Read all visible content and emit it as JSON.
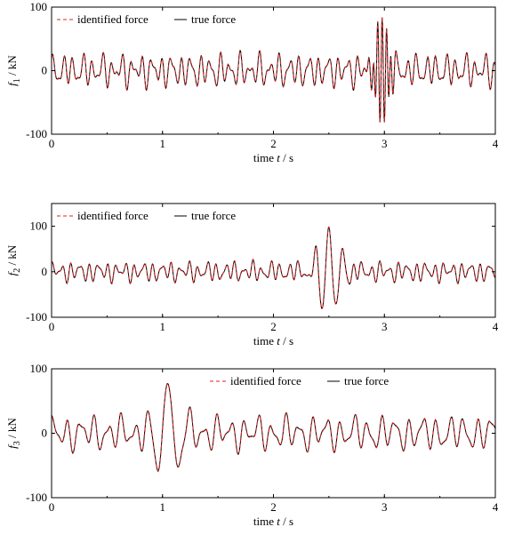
{
  "chart_data": [
    {
      "type": "line",
      "xlabel_parts": [
        "time ",
        "t",
        " / s"
      ],
      "ylabel_parts": [
        "f",
        "1",
        " / kN"
      ],
      "xlim": [
        0,
        4
      ],
      "ylim": [
        -100,
        100
      ],
      "xticks": [
        0,
        1,
        2,
        3,
        4
      ],
      "yticks": [
        -100,
        0,
        100
      ],
      "legend_position": "top-left",
      "series": [
        {
          "name": "identified force",
          "color": "#e02020",
          "style": "dashed"
        },
        {
          "name": "true force",
          "color": "#000000",
          "style": "solid"
        }
      ],
      "signal": {
        "samples": 1200,
        "base": [
          {
            "freq": 11.3,
            "amp": 16,
            "phase": 0.3
          },
          {
            "freq": 17.1,
            "amp": 10,
            "phase": 1.1
          },
          {
            "freq": 6.4,
            "amp": 6,
            "phase": 2.0
          }
        ],
        "burst": {
          "center": 2.98,
          "width": 0.08,
          "freq": 25,
          "amp": 85
        }
      }
    },
    {
      "type": "line",
      "xlabel_parts": [
        "time ",
        "t",
        " / s"
      ],
      "ylabel_parts": [
        "f",
        "2",
        " / kN"
      ],
      "xlim": [
        0,
        4
      ],
      "ylim": [
        -100,
        150
      ],
      "xticks": [
        0,
        1,
        2,
        3,
        4
      ],
      "yticks": [
        -100,
        0,
        100
      ],
      "legend_position": "top-left",
      "series": [
        {
          "name": "identified force",
          "color": "#e02020",
          "style": "dashed"
        },
        {
          "name": "true force",
          "color": "#000000",
          "style": "solid"
        }
      ],
      "signal": {
        "samples": 1200,
        "base": [
          {
            "freq": 12.2,
            "amp": 14,
            "phase": 0.7
          },
          {
            "freq": 17.6,
            "amp": 8,
            "phase": 1.6
          },
          {
            "freq": 5.1,
            "amp": 5,
            "phase": 0.2
          }
        ],
        "burst": {
          "center": 2.5,
          "width": 0.13,
          "freq": 7.9,
          "amp": 100
        }
      }
    },
    {
      "type": "line",
      "xlabel_parts": [
        "time ",
        "t",
        " / s"
      ],
      "ylabel_parts": [
        "f",
        "3",
        " / kN"
      ],
      "xlim": [
        0,
        4
      ],
      "ylim": [
        -100,
        100
      ],
      "xticks": [
        0,
        1,
        2,
        3,
        4
      ],
      "yticks": [
        -100,
        0,
        100
      ],
      "legend_position": "top-right",
      "series": [
        {
          "name": "identified force",
          "color": "#e02020",
          "style": "dashed"
        },
        {
          "name": "true force",
          "color": "#000000",
          "style": "solid"
        }
      ],
      "signal": {
        "samples": 1200,
        "base": [
          {
            "freq": 8.1,
            "amp": 18,
            "phase": 0.9
          },
          {
            "freq": 12.7,
            "amp": 9,
            "phase": 2.3
          },
          {
            "freq": 3.3,
            "amp": 6,
            "phase": 1.2
          }
        ],
        "burst": {
          "center": 1.05,
          "width": 0.14,
          "freq": 5.1,
          "amp": 85
        }
      }
    }
  ]
}
